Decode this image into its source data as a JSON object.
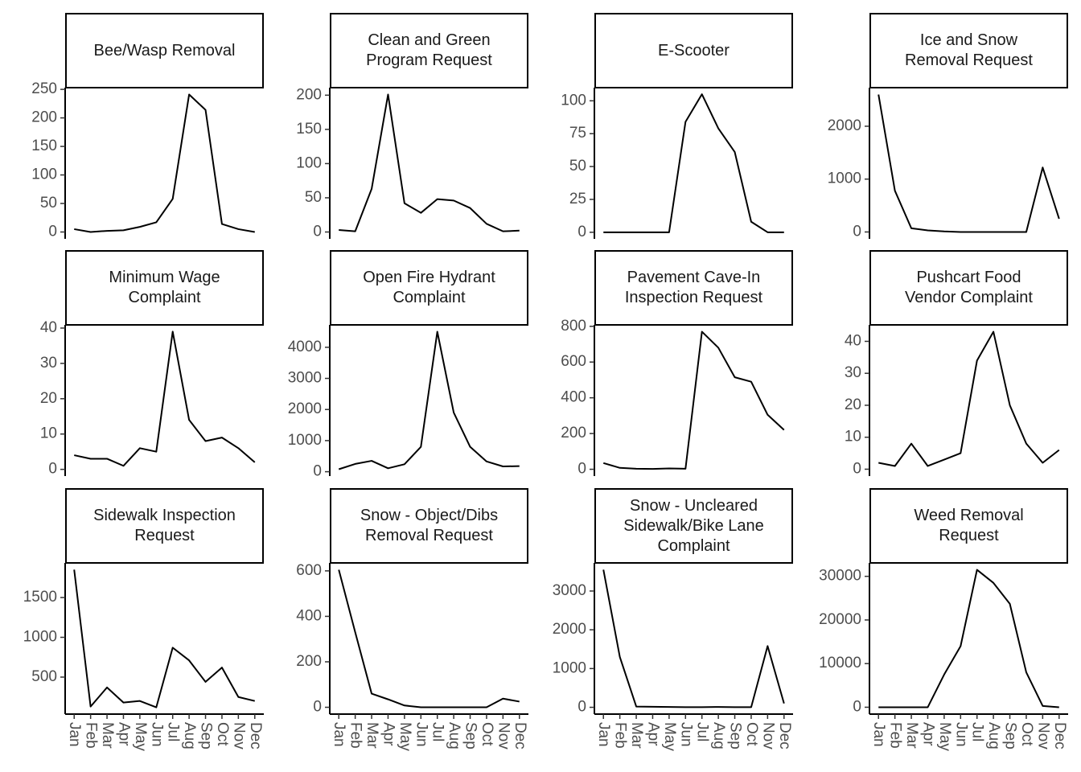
{
  "chart_data": [
    {
      "type": "line",
      "title": "Bee/Wasp Removal",
      "values": [
        5,
        0,
        2,
        3,
        9,
        17,
        58,
        241,
        214,
        14,
        5,
        0
      ],
      "ylim": [
        -12,
        253
      ],
      "yticks": [
        0,
        50,
        100,
        150,
        200,
        250
      ],
      "color": "#000000"
    },
    {
      "type": "line",
      "title": "Clean and Green\nProgram Request",
      "values": [
        3,
        1,
        63,
        201,
        42,
        28,
        48,
        46,
        35,
        12,
        1,
        2
      ],
      "ylim": [
        -10,
        211
      ],
      "yticks": [
        0,
        50,
        100,
        150,
        200
      ],
      "color": "#000000"
    },
    {
      "type": "line",
      "title": "E-Scooter",
      "values": [
        0,
        0,
        0,
        0,
        0,
        84,
        105,
        79,
        61,
        8,
        0,
        0
      ],
      "ylim": [
        -5,
        110
      ],
      "yticks": [
        0,
        25,
        50,
        75,
        100
      ],
      "color": "#000000"
    },
    {
      "type": "line",
      "title": "Ice and Snow\nRemoval Request",
      "values": [
        2600,
        780,
        70,
        30,
        10,
        0,
        0,
        0,
        0,
        0,
        1220,
        250
      ],
      "ylim": [
        -130,
        2730
      ],
      "yticks": [
        0,
        1000,
        2000
      ],
      "color": "#000000"
    },
    {
      "type": "line",
      "title": "Minimum Wage\nComplaint",
      "values": [
        4,
        3,
        3,
        1,
        6,
        5,
        39,
        14,
        8,
        9,
        6,
        2
      ],
      "ylim": [
        -1.9,
        40.9
      ],
      "yticks": [
        0,
        10,
        20,
        30,
        40
      ],
      "color": "#000000"
    },
    {
      "type": "line",
      "title": "Open Fire Hydrant\nComplaint",
      "values": [
        80,
        250,
        350,
        110,
        240,
        800,
        4500,
        1900,
        800,
        330,
        170,
        180
      ],
      "ylim": [
        -140,
        4720
      ],
      "yticks": [
        0,
        1000,
        2000,
        3000,
        4000
      ],
      "color": "#000000"
    },
    {
      "type": "line",
      "title": "Pavement Cave-In\nInspection Request",
      "values": [
        35,
        8,
        3,
        2,
        5,
        3,
        770,
        680,
        515,
        490,
        305,
        220
      ],
      "ylim": [
        -38,
        808
      ],
      "yticks": [
        0,
        200,
        400,
        600,
        800
      ],
      "color": "#000000"
    },
    {
      "type": "line",
      "title": "Pushcart Food\nVendor Complaint",
      "values": [
        2,
        1,
        8,
        1,
        3,
        5,
        34,
        43,
        20,
        8,
        2,
        6
      ],
      "ylim": [
        -2.15,
        45.15
      ],
      "yticks": [
        0,
        10,
        20,
        30,
        40
      ],
      "color": "#000000"
    },
    {
      "type": "line",
      "title": "Sidewalk Inspection\nRequest",
      "categories": [
        "Jan",
        "Feb",
        "Mar",
        "Apr",
        "May",
        "Jun",
        "Jul",
        "Aug",
        "Sep",
        "Oct",
        "Nov",
        "Dec"
      ],
      "values": [
        1850,
        130,
        370,
        180,
        200,
        120,
        870,
        710,
        440,
        620,
        250,
        200
      ],
      "ylim": [
        35,
        1935
      ],
      "yticks": [
        500,
        1000,
        1500
      ],
      "color": "#000000"
    },
    {
      "type": "line",
      "title": "Snow - Object/Dibs\nRemoval Request",
      "categories": [
        "Jan",
        "Feb",
        "Mar",
        "Apr",
        "May",
        "Jun",
        "Jul",
        "Aug",
        "Sep",
        "Oct",
        "Nov",
        "Dec"
      ],
      "values": [
        605,
        330,
        60,
        35,
        8,
        0,
        0,
        0,
        0,
        0,
        38,
        25
      ],
      "ylim": [
        -30,
        635
      ],
      "yticks": [
        0,
        200,
        400,
        600
      ],
      "color": "#000000"
    },
    {
      "type": "line",
      "title": "Snow - Uncleared\nSidewalk/Bike Lane\nComplaint",
      "categories": [
        "Jan",
        "Feb",
        "Mar",
        "Apr",
        "May",
        "Jun",
        "Jul",
        "Aug",
        "Sep",
        "Oct",
        "Nov",
        "Dec"
      ],
      "values": [
        3550,
        1300,
        20,
        15,
        8,
        3,
        5,
        10,
        5,
        3,
        1580,
        100
      ],
      "ylim": [
        -175,
        3725
      ],
      "yticks": [
        0,
        1000,
        2000,
        3000
      ],
      "color": "#000000"
    },
    {
      "type": "line",
      "title": "Weed Removal\nRequest",
      "categories": [
        "Jan",
        "Feb",
        "Mar",
        "Apr",
        "May",
        "Jun",
        "Jul",
        "Aug",
        "Sep",
        "Oct",
        "Nov",
        "Dec"
      ],
      "values": [
        0,
        0,
        0,
        0,
        7500,
        14000,
        31500,
        28500,
        23700,
        8000,
        300,
        0
      ],
      "ylim": [
        -1575,
        33075
      ],
      "yticks": [
        0,
        10000,
        20000,
        30000
      ],
      "color": "#000000"
    }
  ]
}
